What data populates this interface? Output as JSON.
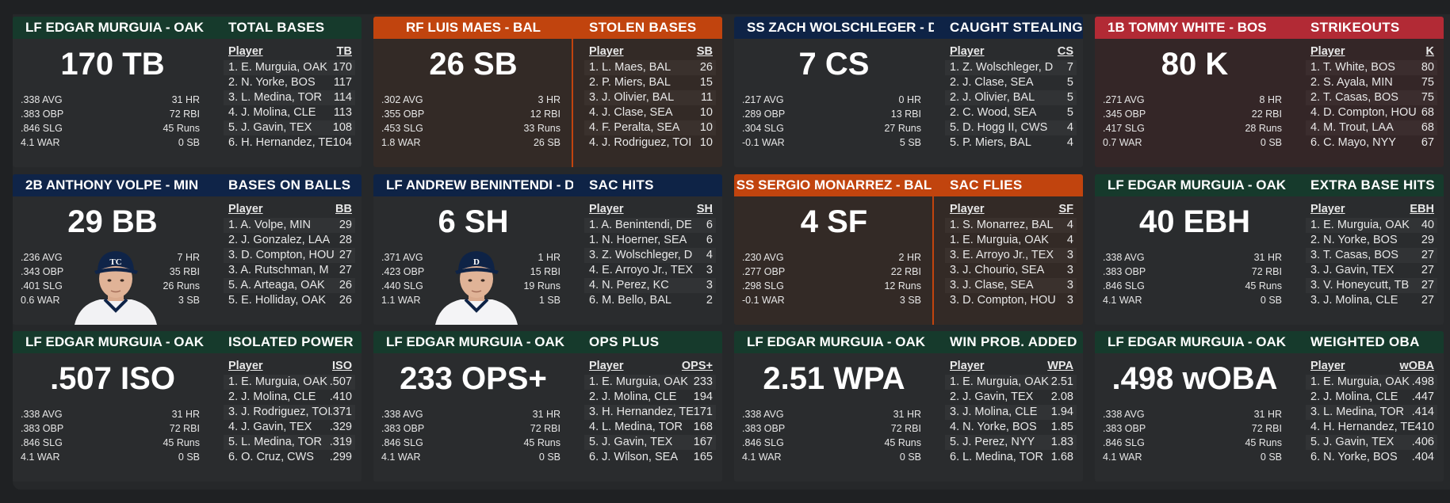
{
  "colors": {
    "oak": "#163a2c",
    "bal": "#c1440e",
    "det": "#0e2346",
    "bos": "#b22a35",
    "min": "#0f2448",
    "bal_tint": "#332a26",
    "bos_tint": "#342627"
  },
  "cards": [
    {
      "player": "LF EDGAR MURGUIA - OAK",
      "team": "oak",
      "big": "170 TB",
      "title": "TOTAL BASES",
      "col": "TB",
      "left_stats": [
        ".338 AVG",
        ".383 OBP",
        ".846 SLG",
        "4.1 WAR"
      ],
      "right_stats": [
        "31 HR",
        "72 RBI",
        "45 Runs",
        "0 SB"
      ],
      "leaders": [
        {
          "name": "1. E. Murguia, OAK",
          "val": "170"
        },
        {
          "name": "2. N. Yorke, BOS",
          "val": "117"
        },
        {
          "name": "3. L. Medina, TOR",
          "val": "114"
        },
        {
          "name": "4. J. Molina, CLE",
          "val": "113"
        },
        {
          "name": "5. J. Gavin, TEX",
          "val": "108"
        },
        {
          "name": "6. H. Hernandez, TE",
          "val": "104"
        }
      ]
    },
    {
      "player": "RF LUIS MAES - BAL",
      "team": "bal",
      "big": "26 SB",
      "title": "STOLEN BASES",
      "col": "SB",
      "left_stats": [
        ".302 AVG",
        ".355 OBP",
        ".453 SLG",
        "1.8 WAR"
      ],
      "right_stats": [
        "3 HR",
        "12 RBI",
        "33 Runs",
        "26 SB"
      ],
      "leaders": [
        {
          "name": "1. L. Maes, BAL",
          "val": "26"
        },
        {
          "name": "2. P. Miers, BAL",
          "val": "15"
        },
        {
          "name": "3. J. Olivier, BAL",
          "val": "11"
        },
        {
          "name": "4. J. Clase, SEA",
          "val": "10"
        },
        {
          "name": "4. F. Peralta, SEA",
          "val": "10"
        },
        {
          "name": "4. J. Rodriguez, TOI",
          "val": "10"
        }
      ]
    },
    {
      "player": "SS ZACH WOLSCHLEGER - DET",
      "team": "det",
      "big": "7 CS",
      "title": "CAUGHT STEALING",
      "col": "CS",
      "left_stats": [
        ".217 AVG",
        ".289 OBP",
        ".304 SLG",
        "-0.1 WAR"
      ],
      "right_stats": [
        "0 HR",
        "13 RBI",
        "27 Runs",
        "5 SB"
      ],
      "leaders": [
        {
          "name": "1. Z. Wolschleger, D",
          "val": "7"
        },
        {
          "name": "2. J. Clase, SEA",
          "val": "5"
        },
        {
          "name": "2. J. Olivier, BAL",
          "val": "5"
        },
        {
          "name": "2. C. Wood, SEA",
          "val": "5"
        },
        {
          "name": "5. D. Hogg II, CWS",
          "val": "4"
        },
        {
          "name": "5. P. Miers, BAL",
          "val": "4"
        }
      ]
    },
    {
      "player": "1B TOMMY WHITE - BOS",
      "team": "bos",
      "big": "80 K",
      "title": "STRIKEOUTS",
      "col": "K",
      "left_stats": [
        ".271 AVG",
        ".345 OBP",
        ".417 SLG",
        "0.7 WAR"
      ],
      "right_stats": [
        "8 HR",
        "22 RBI",
        "28 Runs",
        "0 SB"
      ],
      "leaders": [
        {
          "name": "1. T. White, BOS",
          "val": "80"
        },
        {
          "name": "2. S. Ayala, MIN",
          "val": "75"
        },
        {
          "name": "2. T. Casas, BOS",
          "val": "75"
        },
        {
          "name": "4. D. Compton, HOU",
          "val": "68"
        },
        {
          "name": "4. M. Trout, LAA",
          "val": "68"
        },
        {
          "name": "6. C. Mayo, NYY",
          "val": "67"
        }
      ]
    },
    {
      "player": "2B ANTHONY VOLPE - MIN",
      "team": "min",
      "big": "29 BB",
      "title": "BASES ON BALLS",
      "col": "BB",
      "left_stats": [
        ".236 AVG",
        ".343 OBP",
        ".401 SLG",
        "0.6 WAR"
      ],
      "right_stats": [
        "7 HR",
        "35 RBI",
        "26 Runs",
        "3 SB"
      ],
      "photo": "min",
      "leaders": [
        {
          "name": "1. A. Volpe, MIN",
          "val": "29"
        },
        {
          "name": "2. J. Gonzalez, LAA",
          "val": "28"
        },
        {
          "name": "3. D. Compton, HOU",
          "val": "27"
        },
        {
          "name": "3. A. Rutschman, M",
          "val": "27"
        },
        {
          "name": "5. A. Arteaga, OAK",
          "val": "26"
        },
        {
          "name": "5. E. Holliday, OAK",
          "val": "26"
        }
      ]
    },
    {
      "player": "LF ANDREW BENINTENDI - DET",
      "team": "det",
      "big": "6 SH",
      "title": "SAC HITS",
      "col": "SH",
      "left_stats": [
        ".371 AVG",
        ".423 OBP",
        ".440 SLG",
        "1.1 WAR"
      ],
      "right_stats": [
        "1 HR",
        "15 RBI",
        "19 Runs",
        "1 SB"
      ],
      "photo": "det",
      "leaders": [
        {
          "name": "1. A. Benintendi, DE",
          "val": "6"
        },
        {
          "name": "1. N. Hoerner, SEA",
          "val": "6"
        },
        {
          "name": "3. Z. Wolschleger, D",
          "val": "4"
        },
        {
          "name": "4. E. Arroyo Jr., TEX",
          "val": "3"
        },
        {
          "name": "4. N. Perez, KC",
          "val": "3"
        },
        {
          "name": "6. M. Bello, BAL",
          "val": "2"
        }
      ]
    },
    {
      "player": "SS SERGIO MONARREZ - BAL",
      "team": "bal",
      "big": "4 SF",
      "title": "SAC FLIES",
      "col": "SF",
      "left_stats": [
        ".230 AVG",
        ".277 OBP",
        ".298 SLG",
        "-0.1 WAR"
      ],
      "right_stats": [
        "2 HR",
        "22 RBI",
        "12 Runs",
        "3 SB"
      ],
      "leaders": [
        {
          "name": "1. S. Monarrez, BAL",
          "val": "4"
        },
        {
          "name": "1. E. Murguia, OAK",
          "val": "4"
        },
        {
          "name": "3. E. Arroyo Jr., TEX",
          "val": "3"
        },
        {
          "name": "3. J. Chourio, SEA",
          "val": "3"
        },
        {
          "name": "3. J. Clase, SEA",
          "val": "3"
        },
        {
          "name": "3. D. Compton, HOU",
          "val": "3"
        }
      ]
    },
    {
      "player": "LF EDGAR MURGUIA - OAK",
      "team": "oak",
      "big": "40 EBH",
      "title": "EXTRA BASE HITS",
      "col": "EBH",
      "left_stats": [
        ".338 AVG",
        ".383 OBP",
        ".846 SLG",
        "4.1 WAR"
      ],
      "right_stats": [
        "31 HR",
        "72 RBI",
        "45 Runs",
        "0 SB"
      ],
      "leaders": [
        {
          "name": "1. E. Murguia, OAK",
          "val": "40"
        },
        {
          "name": "2. N. Yorke, BOS",
          "val": "29"
        },
        {
          "name": "3. T. Casas, BOS",
          "val": "27"
        },
        {
          "name": "3. J. Gavin, TEX",
          "val": "27"
        },
        {
          "name": "3. V. Honeycutt, TB",
          "val": "27"
        },
        {
          "name": "3. J. Molina, CLE",
          "val": "27"
        }
      ]
    },
    {
      "player": "LF EDGAR MURGUIA - OAK",
      "team": "oak",
      "big": ".507 ISO",
      "title": "ISOLATED POWER",
      "col": "ISO",
      "left_stats": [
        ".338 AVG",
        ".383 OBP",
        ".846 SLG",
        "4.1 WAR"
      ],
      "right_stats": [
        "31 HR",
        "72 RBI",
        "45 Runs",
        "0 SB"
      ],
      "leaders": [
        {
          "name": "1. E. Murguia, OAK",
          "val": ".507"
        },
        {
          "name": "2. J. Molina, CLE",
          "val": ".410"
        },
        {
          "name": "3. J. Rodriguez, TOI",
          "val": ".371"
        },
        {
          "name": "4. J. Gavin, TEX",
          "val": ".329"
        },
        {
          "name": "5. L. Medina, TOR",
          "val": ".319"
        },
        {
          "name": "6. O. Cruz, CWS",
          "val": ".299"
        }
      ]
    },
    {
      "player": "LF EDGAR MURGUIA - OAK",
      "team": "oak",
      "big": "233 OPS+",
      "title": "OPS PLUS",
      "col": "OPS+",
      "left_stats": [
        ".338 AVG",
        ".383 OBP",
        ".846 SLG",
        "4.1 WAR"
      ],
      "right_stats": [
        "31 HR",
        "72 RBI",
        "45 Runs",
        "0 SB"
      ],
      "leaders": [
        {
          "name": "1. E. Murguia, OAK",
          "val": "233"
        },
        {
          "name": "2. J. Molina, CLE",
          "val": "194"
        },
        {
          "name": "3. H. Hernandez, TE",
          "val": "171"
        },
        {
          "name": "4. L. Medina, TOR",
          "val": "168"
        },
        {
          "name": "5. J. Gavin, TEX",
          "val": "167"
        },
        {
          "name": "6. J. Wilson, SEA",
          "val": "165"
        }
      ]
    },
    {
      "player": "LF EDGAR MURGUIA - OAK",
      "team": "oak",
      "big": "2.51 WPA",
      "title": "WIN PROB. ADDED",
      "col": "WPA",
      "left_stats": [
        ".338 AVG",
        ".383 OBP",
        ".846 SLG",
        "4.1 WAR"
      ],
      "right_stats": [
        "31 HR",
        "72 RBI",
        "45 Runs",
        "0 SB"
      ],
      "leaders": [
        {
          "name": "1. E. Murguia, OAK",
          "val": "2.51"
        },
        {
          "name": "2. J. Gavin, TEX",
          "val": "2.08"
        },
        {
          "name": "3. J. Molina, CLE",
          "val": "1.94"
        },
        {
          "name": "4. N. Yorke, BOS",
          "val": "1.85"
        },
        {
          "name": "5. J. Perez, NYY",
          "val": "1.83"
        },
        {
          "name": "6. L. Medina, TOR",
          "val": "1.68"
        }
      ]
    },
    {
      "player": "LF EDGAR MURGUIA - OAK",
      "team": "oak",
      "big": ".498 wOBA",
      "title": "WEIGHTED OBA",
      "col": "wOBA",
      "left_stats": [
        ".338 AVG",
        ".383 OBP",
        ".846 SLG",
        "4.1 WAR"
      ],
      "right_stats": [
        "31 HR",
        "72 RBI",
        "45 Runs",
        "0 SB"
      ],
      "leaders": [
        {
          "name": "1. E. Murguia, OAK",
          "val": ".498"
        },
        {
          "name": "2. J. Molina, CLE",
          "val": ".447"
        },
        {
          "name": "3. L. Medina, TOR",
          "val": ".414"
        },
        {
          "name": "4. H. Hernandez, TE",
          "val": ".410"
        },
        {
          "name": "5. J. Gavin, TEX",
          "val": ".406"
        },
        {
          "name": "6. N. Yorke, BOS",
          "val": ".404"
        }
      ]
    }
  ],
  "column_header_label": "Player"
}
